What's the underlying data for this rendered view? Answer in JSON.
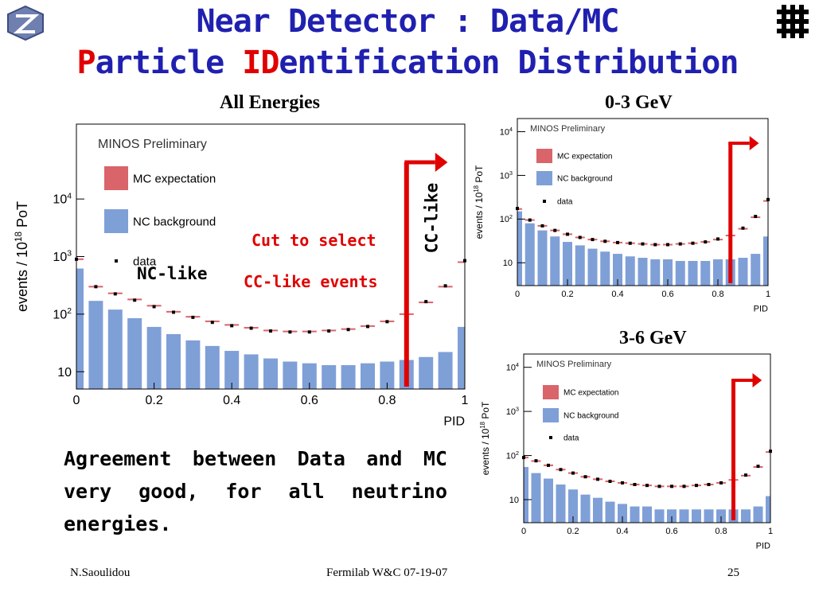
{
  "title_line1": "Near Detector  : Data/MC",
  "title_line2": {
    "p1": "P",
    "p2": "article ",
    "p3": "ID",
    "p4": "entification Distribution"
  },
  "labels": {
    "all_energies": "All Energies",
    "range_0_3": "0-3 GeV",
    "range_3_6": "3-6 GeV",
    "nc_like": "NC-like",
    "cut_line1": "Cut to select",
    "cut_line2": "CC-like events",
    "cc_like": "CC-like"
  },
  "body_text": "Agreement between Data and MC very good, for all neutrino energies.",
  "footer": {
    "author": "N.Saoulidou",
    "event": "Fermilab W&C  07-19-07",
    "page": "25"
  },
  "colors": {
    "title": "#2020b0",
    "mc": "#d9646a",
    "nc": "#7f9fd7",
    "arrow": "#e00000"
  },
  "chart_data": [
    {
      "type": "bar",
      "panel": "All Energies",
      "annotation": "MINOS Preliminary",
      "xlabel": "PID",
      "ylabel": "events / 10^18 PoT",
      "xlim": [
        0,
        1
      ],
      "ylim": [
        5,
        200000
      ],
      "log_y": true,
      "x_ticks": [
        "0",
        "0.2",
        "0.4",
        "0.6",
        "0.8",
        "1"
      ],
      "y_ticks": [
        "10",
        "10^2",
        "10^3",
        "10^4"
      ],
      "legend": [
        "MC expectation",
        "NC background",
        "data"
      ],
      "legend_position": "top-left",
      "cut_pid": 0.85,
      "x": [
        0.0,
        0.05,
        0.1,
        0.15,
        0.2,
        0.25,
        0.3,
        0.35,
        0.4,
        0.45,
        0.5,
        0.55,
        0.6,
        0.65,
        0.7,
        0.75,
        0.8,
        0.85,
        0.9,
        0.95,
        1.0
      ],
      "series": [
        {
          "name": "MC expectation",
          "values": [
            900,
            300,
            230,
            180,
            140,
            110,
            90,
            75,
            65,
            58,
            52,
            50,
            50,
            52,
            55,
            62,
            75,
            100,
            160,
            300,
            800
          ]
        },
        {
          "name": "NC background",
          "values": [
            620,
            170,
            120,
            85,
            60,
            45,
            35,
            28,
            23,
            20,
            17,
            15,
            14,
            13,
            13,
            14,
            15,
            16,
            18,
            22,
            60
          ]
        },
        {
          "name": "data",
          "values": [
            900,
            300,
            225,
            175,
            135,
            108,
            88,
            72,
            63,
            57,
            51,
            49,
            49,
            51,
            54,
            61,
            74,
            98,
            165,
            310,
            850
          ]
        }
      ]
    },
    {
      "type": "bar",
      "panel": "0-3 GeV",
      "annotation": "MINOS Preliminary",
      "xlabel": "PID",
      "ylabel": "events / 10^18 PoT",
      "xlim": [
        0,
        1
      ],
      "ylim": [
        3,
        20000
      ],
      "log_y": true,
      "x_ticks": [
        "0",
        "0.2",
        "0.4",
        "0.6",
        "0.8",
        "1"
      ],
      "y_ticks": [
        "10",
        "10^2",
        "10^3",
        "10^4"
      ],
      "legend": [
        "MC expectation",
        "NC background",
        "data"
      ],
      "legend_position": "top-left",
      "cut_pid": 0.85,
      "x": [
        0.0,
        0.05,
        0.1,
        0.15,
        0.2,
        0.25,
        0.3,
        0.35,
        0.4,
        0.45,
        0.5,
        0.55,
        0.6,
        0.65,
        0.7,
        0.75,
        0.8,
        0.85,
        0.9,
        0.95,
        1.0
      ],
      "series": [
        {
          "name": "MC expectation",
          "values": [
            170,
            95,
            70,
            55,
            45,
            38,
            34,
            31,
            29,
            28,
            27,
            26,
            26,
            27,
            28,
            30,
            34,
            42,
            60,
            110,
            260
          ]
        },
        {
          "name": "NC background",
          "values": [
            150,
            80,
            55,
            40,
            30,
            25,
            21,
            18,
            16,
            14,
            13,
            12,
            12,
            11,
            11,
            11,
            12,
            12,
            13,
            16,
            40
          ]
        },
        {
          "name": "data",
          "values": [
            175,
            95,
            70,
            55,
            45,
            38,
            34,
            31,
            29,
            28,
            27,
            26,
            26,
            27,
            28,
            30,
            35,
            44,
            62,
            115,
            280
          ]
        }
      ]
    },
    {
      "type": "bar",
      "panel": "3-6 GeV",
      "annotation": "MINOS Preliminary",
      "xlabel": "PID",
      "ylabel": "events / 10^18 PoT",
      "xlim": [
        0,
        1
      ],
      "ylim": [
        3,
        20000
      ],
      "log_y": true,
      "x_ticks": [
        "0",
        "0.2",
        "0.4",
        "0.6",
        "0.8",
        "1"
      ],
      "y_ticks": [
        "10",
        "10^2",
        "10^3",
        "10^4"
      ],
      "legend": [
        "MC expectation",
        "NC background",
        "data"
      ],
      "legend_position": "top-left",
      "cut_pid": 0.85,
      "x": [
        0.0,
        0.05,
        0.1,
        0.15,
        0.2,
        0.25,
        0.3,
        0.35,
        0.4,
        0.45,
        0.5,
        0.55,
        0.6,
        0.65,
        0.7,
        0.75,
        0.8,
        0.85,
        0.9,
        0.95,
        1.0
      ],
      "series": [
        {
          "name": "MC expectation",
          "values": [
            90,
            75,
            60,
            48,
            40,
            33,
            29,
            26,
            24,
            22,
            21,
            20,
            20,
            20,
            21,
            22,
            24,
            28,
            35,
            55,
            120
          ]
        },
        {
          "name": "NC background",
          "values": [
            55,
            40,
            30,
            22,
            17,
            13,
            11,
            9,
            8,
            7,
            7,
            6,
            6,
            6,
            6,
            6,
            6,
            6,
            6,
            7,
            12
          ]
        },
        {
          "name": "data",
          "values": [
            90,
            76,
            60,
            48,
            40,
            33,
            29,
            26,
            24,
            22,
            21,
            20,
            20,
            20,
            21,
            22,
            24,
            28,
            36,
            57,
            125
          ]
        }
      ]
    }
  ]
}
